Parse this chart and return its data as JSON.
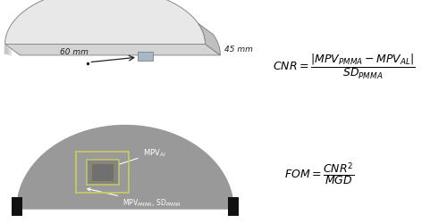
{
  "background_color": "#ffffff",
  "figure_width": 5.0,
  "figure_height": 2.5,
  "dpi": 100,
  "phantom_top_color": "#e8e8e8",
  "phantom_front_color": "#d4d4d4",
  "phantom_side_color": "#c0c0c0",
  "phantom_bottom_color": "#b0b0b0",
  "phantom_edge_color": "#888888",
  "al_insert_color": "#a8b8c8",
  "al_insert_edge": "#808080",
  "annotation_color": "#222222",
  "xray_bg": "#000000",
  "xray_phantom_color": "#999999",
  "xray_al_outer_color": "#b0b0a0",
  "xray_al_inner_color": "#808080",
  "xray_al_innermost_color": "#686868",
  "outer_rect_color": "#c8c864",
  "inner_rect_color": "#c8c864",
  "clip_color": "#111111",
  "text_color_white": "#ffffff",
  "text_color_black": "#111111",
  "formula_fontsize": 9
}
